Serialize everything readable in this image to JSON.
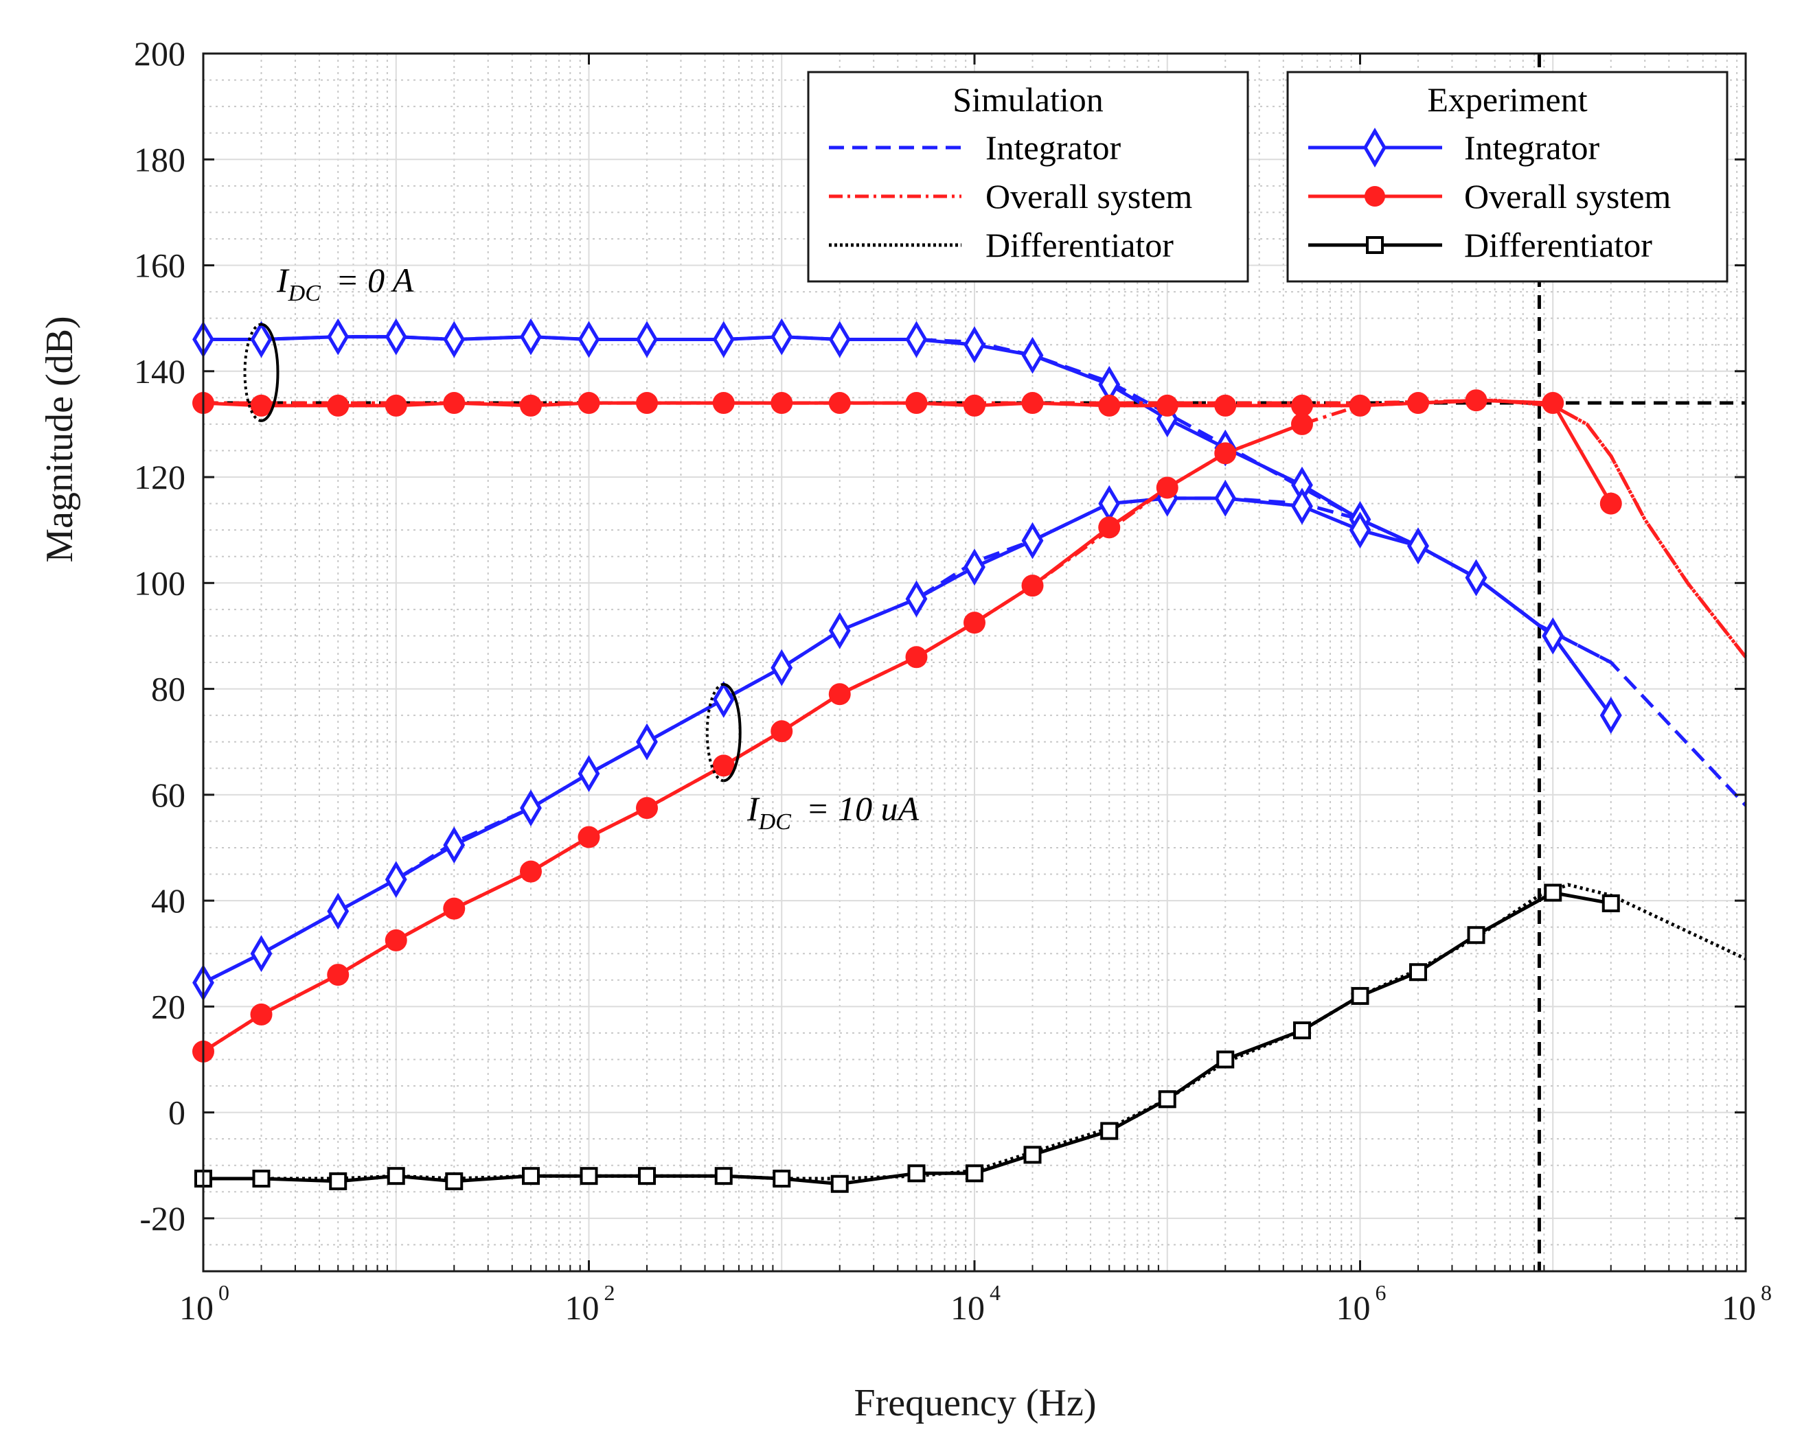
{
  "chart_data": {
    "type": "line",
    "xscale": "log",
    "xlabel": "Frequency (Hz)",
    "ylabel": "Magnitude (dB)",
    "xlim": [
      1,
      100000000
    ],
    "ylim": [
      -30,
      200
    ],
    "x_ticks": [
      {
        "value": 1,
        "base": "10",
        "exp": "0"
      },
      {
        "value": 100,
        "base": "10",
        "exp": "2"
      },
      {
        "value": 10000,
        "base": "10",
        "exp": "4"
      },
      {
        "value": 1000000,
        "base": "10",
        "exp": "6"
      },
      {
        "value": 100000000,
        "base": "10",
        "exp": "8"
      }
    ],
    "y_ticks": [
      {
        "value": 200,
        "label": "200"
      },
      {
        "value": 180,
        "label": "180"
      },
      {
        "value": 160,
        "label": "160"
      },
      {
        "value": 140,
        "label": "140"
      },
      {
        "value": 120,
        "label": "120"
      },
      {
        "value": 100,
        "label": "100"
      },
      {
        "value": 80,
        "label": "80"
      },
      {
        "value": 60,
        "label": "60"
      },
      {
        "value": 40,
        "label": "40"
      },
      {
        "value": 20,
        "label": "20"
      },
      {
        "value": 0,
        "label": "0"
      },
      {
        "value": -20,
        "label": "-20"
      }
    ],
    "grid": true,
    "legend": {
      "simulation": {
        "title": "Simulation",
        "entries": [
          {
            "label": "Integrator",
            "color": "#1f1fff",
            "style": "dashed"
          },
          {
            "label": "Overall system",
            "color": "#ff1f1f",
            "style": "dashdot"
          },
          {
            "label": "Differentiator",
            "color": "#000000",
            "style": "dotted"
          }
        ]
      },
      "experiment": {
        "title": "Experiment",
        "entries": [
          {
            "label": "Integrator",
            "color": "#1f1fff",
            "marker": "diamond"
          },
          {
            "label": "Overall system",
            "color": "#ff1f1f",
            "marker": "circle"
          },
          {
            "label": "Differentiator",
            "color": "#000000",
            "marker": "square"
          }
        ]
      }
    },
    "annotations": [
      {
        "main": "I",
        "sub": "DC",
        "value_text": "= 0  A"
      },
      {
        "main": "I",
        "sub": "DC",
        "value_text": "= 10  uA"
      }
    ],
    "reference_lines": {
      "horizontal_y": 134,
      "vertical_x": 8500000
    },
    "series": [
      {
        "name": "Integrator (Simulation), I_DC = 0 A",
        "color": "#1f1fff",
        "style": "dashed",
        "x": [
          1,
          2,
          5,
          10,
          20,
          50,
          100,
          200,
          500,
          1000,
          2000,
          5000,
          10000,
          20000,
          50000,
          100000,
          200000,
          500000,
          1000000,
          2000000,
          4000000,
          8500000,
          20000000,
          100000000
        ],
        "y": [
          146,
          146,
          146.5,
          146.5,
          146,
          146.5,
          146,
          146,
          146,
          146.5,
          146,
          146,
          145.5,
          143,
          138,
          132,
          126,
          118,
          112,
          107,
          101,
          92,
          85,
          58
        ]
      },
      {
        "name": "Integrator (Experiment), I_DC = 0 A",
        "color": "#1f1fff",
        "marker": "diamond",
        "x": [
          1,
          2,
          5,
          10,
          20,
          50,
          100,
          200,
          500,
          1000,
          2000,
          5000,
          10000,
          20000,
          50000,
          100000,
          200000,
          500000,
          1000000,
          2000000,
          4000000,
          10000000,
          20000000
        ],
        "y": [
          146,
          146,
          146.5,
          146.5,
          146,
          146.5,
          146,
          146,
          146,
          146.5,
          146,
          146,
          145,
          143,
          137.5,
          131,
          125.5,
          118.5,
          112,
          107,
          101,
          90,
          75
        ]
      },
      {
        "name": "Overall system (Simulation), I_DC = 0 A",
        "color": "#ff1f1f",
        "style": "dashdot",
        "x": [
          1,
          10,
          100,
          1000,
          10000,
          100000,
          1000000,
          5000000,
          10000000,
          15000000,
          20000000,
          30000000,
          50000000,
          100000000
        ],
        "y": [
          134,
          134,
          134,
          134,
          134,
          134,
          134,
          134.5,
          133.5,
          130,
          124,
          112,
          100,
          86
        ]
      },
      {
        "name": "Overall system (Experiment), I_DC = 0 A",
        "color": "#ff1f1f",
        "marker": "circle",
        "x": [
          1,
          2,
          5,
          10,
          20,
          50,
          100,
          200,
          500,
          1000,
          2000,
          5000,
          10000,
          20000,
          50000,
          100000,
          200000,
          500000,
          1000000,
          2000000,
          4000000,
          10000000,
          20000000
        ],
        "y": [
          134,
          133.5,
          133.5,
          133.5,
          134,
          133.5,
          134,
          134,
          134,
          134,
          134,
          134,
          133.5,
          134,
          133.5,
          133.5,
          133.5,
          133.5,
          133.5,
          134,
          134.5,
          134,
          115
        ]
      },
      {
        "name": "Integrator (Simulation), I_DC = 10 uA",
        "color": "#1f1fff",
        "style": "dashed",
        "x": [
          1,
          2,
          5,
          10,
          20,
          50,
          100,
          200,
          500,
          1000,
          2000,
          5000,
          10000,
          20000,
          50000,
          100000,
          200000,
          500000,
          1000000,
          2000000,
          4000000,
          8500000,
          20000000
        ],
        "y": [
          24.5,
          30,
          38,
          44,
          51,
          57.5,
          64,
          70,
          78,
          84,
          91,
          97,
          104,
          108,
          115,
          116,
          116,
          115,
          112,
          107,
          101,
          92,
          85
        ]
      },
      {
        "name": "Integrator (Experiment), I_DC = 10 uA",
        "color": "#1f1fff",
        "marker": "diamond",
        "x": [
          1,
          2,
          5,
          10,
          20,
          50,
          100,
          200,
          500,
          1000,
          2000,
          5000,
          10000,
          20000,
          50000,
          100000,
          200000,
          500000,
          1000000,
          2000000,
          4000000,
          10000000,
          20000000
        ],
        "y": [
          24.5,
          30,
          38,
          44,
          50.5,
          57.5,
          64,
          70,
          78,
          84,
          91,
          97,
          103,
          108,
          115,
          116,
          116,
          114.5,
          110,
          107,
          101,
          90,
          75
        ]
      },
      {
        "name": "Overall system (Simulation), I_DC = 10 uA",
        "color": "#ff1f1f",
        "style": "dashdot",
        "x": [
          1,
          2,
          5,
          10,
          20,
          50,
          100,
          200,
          500,
          1000,
          2000,
          5000,
          10000,
          20000,
          50000,
          100000,
          200000,
          500000,
          1000000,
          2000000,
          5000000,
          10000000,
          15000000,
          20000000,
          30000000,
          50000000,
          100000000
        ],
        "y": [
          11.5,
          18.5,
          26,
          32.5,
          38.5,
          45.5,
          52,
          57.5,
          65.5,
          72,
          79,
          86,
          92.5,
          99.5,
          110,
          118,
          124.5,
          130,
          133.5,
          134,
          134.5,
          133.5,
          130,
          124,
          112,
          100,
          86
        ]
      },
      {
        "name": "Overall system (Experiment), I_DC = 10 uA",
        "color": "#ff1f1f",
        "marker": "circle",
        "x": [
          1,
          2,
          5,
          10,
          20,
          50,
          100,
          200,
          500,
          1000,
          2000,
          5000,
          10000,
          20000,
          50000,
          100000,
          200000,
          500000
        ],
        "y": [
          11.5,
          18.5,
          26,
          32.5,
          38.5,
          45.5,
          52,
          57.5,
          65.5,
          72,
          79,
          86,
          92.5,
          99.5,
          110.5,
          118,
          124.5,
          130
        ]
      },
      {
        "name": "Differentiator (Simulation)",
        "color": "#000000",
        "style": "dotted",
        "x": [
          1,
          2,
          5,
          10,
          20,
          50,
          100,
          200,
          500,
          1000,
          2000,
          5000,
          10000,
          20000,
          50000,
          100000,
          200000,
          500000,
          1000000,
          2000000,
          4000000,
          8500000,
          12000000,
          20000000,
          100000000
        ],
        "y": [
          -12.5,
          -12.5,
          -12.5,
          -12,
          -12.5,
          -12,
          -12,
          -12,
          -12,
          -12.5,
          -12.5,
          -12,
          -11,
          -7.5,
          -3,
          2.5,
          9.5,
          15.5,
          22,
          27,
          33,
          41,
          43,
          41,
          29
        ]
      },
      {
        "name": "Differentiator (Experiment)",
        "color": "#000000",
        "marker": "square",
        "x": [
          1,
          2,
          5,
          10,
          20,
          50,
          100,
          200,
          500,
          1000,
          2000,
          5000,
          10000,
          20000,
          50000,
          100000,
          200000,
          500000,
          1000000,
          2000000,
          4000000,
          10000000,
          20000000
        ],
        "y": [
          -12.5,
          -12.5,
          -13,
          -12,
          -13,
          -12,
          -12,
          -12,
          -12,
          -12.5,
          -13.5,
          -11.5,
          -11.5,
          -8,
          -3.5,
          2.5,
          10,
          15.5,
          22,
          26.5,
          33.5,
          41.5,
          39.5
        ]
      }
    ]
  }
}
